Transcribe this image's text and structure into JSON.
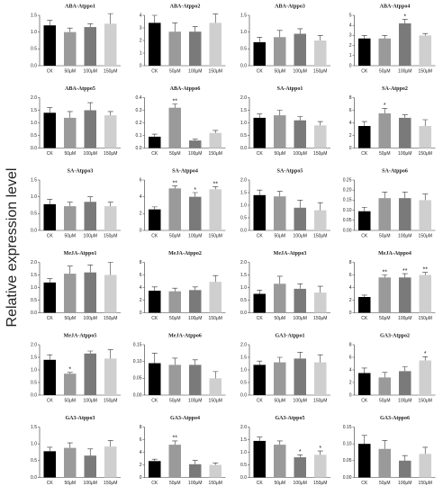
{
  "y_label": "Relative expression level",
  "chart_data": [
    {
      "type": "bar",
      "title": "ABA-Atppo1",
      "categories": [
        "CK",
        "50μM",
        "100μM",
        "150μM"
      ],
      "values": [
        1.2,
        1.0,
        1.15,
        1.25
      ],
      "errors": [
        0.15,
        0.12,
        0.1,
        0.3
      ],
      "significance": [
        null,
        null,
        null,
        null
      ],
      "colors": [
        "#000000",
        "#9a9a9a",
        "#7a7a7a",
        "#cfcfcf"
      ],
      "ylim": [
        0,
        1.5
      ],
      "yticks": [
        {
          "value": 0,
          "label": "0.0"
        },
        0.5,
        {
          "value": 1,
          "label": "1.0"
        },
        1.5
      ]
    },
    {
      "type": "bar",
      "title": "ABA-Atppo2",
      "categories": [
        "CK",
        "50μM",
        "100μM",
        "150μM"
      ],
      "values": [
        3.4,
        2.7,
        2.7,
        3.4
      ],
      "errors": [
        0.6,
        0.7,
        0.4,
        0.7
      ],
      "significance": [
        null,
        null,
        null,
        null
      ],
      "colors": [
        "#000000",
        "#9a9a9a",
        "#7a7a7a",
        "#cfcfcf"
      ],
      "ylim": [
        0,
        4
      ],
      "yticks": [
        0,
        1,
        2,
        3,
        4
      ]
    },
    {
      "type": "bar",
      "title": "ABA-Atppo3",
      "categories": [
        "CK",
        "50μM",
        "100μM",
        "150μM"
      ],
      "values": [
        0.7,
        0.85,
        0.95,
        0.75
      ],
      "errors": [
        0.15,
        0.2,
        0.15,
        0.15
      ],
      "significance": [
        null,
        null,
        null,
        null
      ],
      "colors": [
        "#000000",
        "#9a9a9a",
        "#7a7a7a",
        "#cfcfcf"
      ],
      "ylim": [
        0,
        1.5
      ],
      "yticks": [
        {
          "value": 0,
          "label": "0.0"
        },
        0.5,
        {
          "value": 1,
          "label": "1.0"
        },
        1.5
      ]
    },
    {
      "type": "bar",
      "title": "ABA-Atppo4",
      "categories": [
        "CK",
        "50μM",
        "100μM",
        "150μM"
      ],
      "values": [
        2.7,
        2.7,
        4.2,
        3.0
      ],
      "errors": [
        0.3,
        0.3,
        0.4,
        0.2
      ],
      "significance": [
        null,
        null,
        "*",
        null
      ],
      "colors": [
        "#000000",
        "#9a9a9a",
        "#7a7a7a",
        "#cfcfcf"
      ],
      "ylim": [
        0,
        5
      ],
      "yticks": [
        0,
        1,
        2,
        3,
        4,
        5
      ]
    },
    {
      "type": "bar",
      "title": "ABA-Atppo5",
      "categories": [
        "CK",
        "50μM",
        "100μM",
        "150μM"
      ],
      "values": [
        1.4,
        1.2,
        1.5,
        1.3
      ],
      "errors": [
        0.2,
        0.25,
        0.3,
        0.15
      ],
      "significance": [
        null,
        null,
        null,
        null
      ],
      "colors": [
        "#000000",
        "#9a9a9a",
        "#7a7a7a",
        "#cfcfcf"
      ],
      "ylim": [
        0,
        2
      ],
      "yticks": [
        {
          "value": 0,
          "label": "0.0"
        },
        0.5,
        {
          "value": 1,
          "label": "1.0"
        },
        1.5,
        {
          "value": 2,
          "label": "2.0"
        }
      ]
    },
    {
      "type": "bar",
      "title": "ABA-Atppo6",
      "categories": [
        "CK",
        "50μM",
        "100μM",
        "150μM"
      ],
      "values": [
        0.09,
        0.32,
        0.06,
        0.12
      ],
      "errors": [
        0.02,
        0.03,
        0.01,
        0.02
      ],
      "significance": [
        null,
        "**",
        null,
        null
      ],
      "colors": [
        "#000000",
        "#9a9a9a",
        "#7a7a7a",
        "#cfcfcf"
      ],
      "ylim": [
        0,
        0.4
      ],
      "yticks": [
        {
          "value": 0,
          "label": "0.0"
        },
        0.1,
        0.2,
        0.3,
        0.4
      ]
    },
    {
      "type": "bar",
      "title": "SA-Atppo1",
      "categories": [
        "CK",
        "50μM",
        "100μM",
        "150μM"
      ],
      "values": [
        1.2,
        1.3,
        1.1,
        0.9
      ],
      "errors": [
        0.15,
        0.2,
        0.15,
        0.15
      ],
      "significance": [
        null,
        null,
        null,
        null
      ],
      "colors": [
        "#000000",
        "#9a9a9a",
        "#7a7a7a",
        "#cfcfcf"
      ],
      "ylim": [
        0,
        2
      ],
      "yticks": [
        {
          "value": 0,
          "label": "0.0"
        },
        0.5,
        {
          "value": 1,
          "label": "1.0"
        },
        1.5,
        {
          "value": 2,
          "label": "2.0"
        }
      ]
    },
    {
      "type": "bar",
      "title": "SA-Atppo2",
      "categories": [
        "CK",
        "50μM",
        "100μM",
        "150μM"
      ],
      "values": [
        3.5,
        5.5,
        4.8,
        3.5
      ],
      "errors": [
        0.7,
        0.8,
        0.5,
        1.0
      ],
      "significance": [
        null,
        "*",
        null,
        null
      ],
      "colors": [
        "#000000",
        "#9a9a9a",
        "#7a7a7a",
        "#cfcfcf"
      ],
      "ylim": [
        0,
        8
      ],
      "yticks": [
        0,
        2,
        4,
        6,
        8
      ]
    },
    {
      "type": "bar",
      "title": "SA-Atppo3",
      "categories": [
        "CK",
        "50μM",
        "100μM",
        "150μM"
      ],
      "values": [
        0.78,
        0.72,
        0.85,
        0.72
      ],
      "errors": [
        0.15,
        0.12,
        0.15,
        0.12
      ],
      "significance": [
        null,
        null,
        null,
        null
      ],
      "colors": [
        "#000000",
        "#9a9a9a",
        "#7a7a7a",
        "#cfcfcf"
      ],
      "ylim": [
        0,
        1.5
      ],
      "yticks": [
        {
          "value": 0,
          "label": "0.0"
        },
        0.5,
        {
          "value": 1,
          "label": "1.0"
        },
        1.5
      ]
    },
    {
      "type": "bar",
      "title": "SA-Atppo4",
      "categories": [
        "CK",
        "50μM",
        "100μM",
        "150μM"
      ],
      "values": [
        2.5,
        5.0,
        4.0,
        4.9
      ],
      "errors": [
        0.3,
        0.3,
        0.5,
        0.3
      ],
      "significance": [
        null,
        "**",
        "*",
        "**"
      ],
      "colors": [
        "#000000",
        "#9a9a9a",
        "#7a7a7a",
        "#cfcfcf"
      ],
      "ylim": [
        0,
        6
      ],
      "yticks": [
        0,
        2,
        4,
        6
      ]
    },
    {
      "type": "bar",
      "title": "SA-Atppo5",
      "categories": [
        "CK",
        "50μM",
        "100μM",
        "150μM"
      ],
      "values": [
        1.4,
        1.35,
        0.9,
        0.8
      ],
      "errors": [
        0.2,
        0.2,
        0.3,
        0.3
      ],
      "significance": [
        null,
        null,
        null,
        null
      ],
      "colors": [
        "#000000",
        "#9a9a9a",
        "#7a7a7a",
        "#cfcfcf"
      ],
      "ylim": [
        0,
        2
      ],
      "yticks": [
        {
          "value": 0,
          "label": "0.0"
        },
        0.5,
        {
          "value": 1,
          "label": "1.0"
        },
        1.5,
        {
          "value": 2,
          "label": "2.0"
        }
      ]
    },
    {
      "type": "bar",
      "title": "SA-Atppo6",
      "categories": [
        "CK",
        "50μM",
        "100μM",
        "150μM"
      ],
      "values": [
        0.095,
        0.16,
        0.16,
        0.15
      ],
      "errors": [
        0.02,
        0.03,
        0.03,
        0.03
      ],
      "significance": [
        null,
        null,
        null,
        null
      ],
      "colors": [
        "#000000",
        "#9a9a9a",
        "#7a7a7a",
        "#cfcfcf"
      ],
      "ylim": [
        0,
        0.25
      ],
      "yticks": [
        {
          "value": 0,
          "label": "0.00"
        },
        0.05,
        {
          "value": 0.1,
          "label": "0.10"
        },
        0.15,
        {
          "value": 0.2,
          "label": "0.20"
        },
        0.25
      ]
    },
    {
      "type": "bar",
      "title": "MeJA-Atppo1",
      "categories": [
        "CK",
        "50μM",
        "100μM",
        "150μM"
      ],
      "values": [
        1.2,
        1.55,
        1.6,
        1.5
      ],
      "errors": [
        0.15,
        0.3,
        0.3,
        0.5
      ],
      "significance": [
        null,
        null,
        null,
        null
      ],
      "colors": [
        "#000000",
        "#9a9a9a",
        "#7a7a7a",
        "#cfcfcf"
      ],
      "ylim": [
        0,
        2
      ],
      "yticks": [
        {
          "value": 0,
          "label": "0.0"
        },
        0.5,
        {
          "value": 1,
          "label": "1.0"
        },
        1.5,
        {
          "value": 2,
          "label": "2.0"
        }
      ]
    },
    {
      "type": "bar",
      "title": "MeJA-Atppo2",
      "categories": [
        "CK",
        "50μM",
        "100μM",
        "150μM"
      ],
      "values": [
        3.5,
        3.4,
        3.6,
        4.9
      ],
      "errors": [
        0.6,
        0.5,
        0.5,
        1.0
      ],
      "significance": [
        null,
        null,
        null,
        null
      ],
      "colors": [
        "#000000",
        "#9a9a9a",
        "#7a7a7a",
        "#cfcfcf"
      ],
      "ylim": [
        0,
        8
      ],
      "yticks": [
        0,
        2,
        4,
        6,
        8
      ]
    },
    {
      "type": "bar",
      "title": "MeJA-Atppo3",
      "categories": [
        "CK",
        "50μM",
        "100μM",
        "150μM"
      ],
      "values": [
        0.75,
        1.15,
        0.95,
        0.8
      ],
      "errors": [
        0.15,
        0.3,
        0.2,
        0.25
      ],
      "significance": [
        null,
        null,
        null,
        null
      ],
      "colors": [
        "#000000",
        "#9a9a9a",
        "#7a7a7a",
        "#cfcfcf"
      ],
      "ylim": [
        0,
        2
      ],
      "yticks": [
        {
          "value": 0,
          "label": "0.0"
        },
        0.5,
        {
          "value": 1,
          "label": "1.0"
        },
        1.5,
        {
          "value": 2,
          "label": "2.0"
        }
      ]
    },
    {
      "type": "bar",
      "title": "MeJA-Atppo4",
      "categories": [
        "CK",
        "50μM",
        "100μM",
        "150μM"
      ],
      "values": [
        2.5,
        5.6,
        5.6,
        6.0
      ],
      "errors": [
        0.3,
        0.4,
        0.6,
        0.4
      ],
      "significance": [
        null,
        "**",
        "**",
        "**"
      ],
      "colors": [
        "#000000",
        "#9a9a9a",
        "#7a7a7a",
        "#cfcfcf"
      ],
      "ylim": [
        0,
        8
      ],
      "yticks": [
        0,
        2,
        4,
        6,
        8
      ]
    },
    {
      "type": "bar",
      "title": "MeJA-Atppo5",
      "categories": [
        "CK",
        "50μM",
        "100μM",
        "150μM"
      ],
      "values": [
        1.4,
        0.85,
        1.65,
        1.45
      ],
      "errors": [
        0.2,
        0.05,
        0.1,
        0.35
      ],
      "significance": [
        null,
        "*",
        null,
        null
      ],
      "colors": [
        "#000000",
        "#9a9a9a",
        "#7a7a7a",
        "#cfcfcf"
      ],
      "ylim": [
        0,
        2
      ],
      "yticks": [
        {
          "value": 0,
          "label": "0.0"
        },
        0.5,
        {
          "value": 1,
          "label": "1.0"
        },
        1.5,
        {
          "value": 2,
          "label": "2.0"
        }
      ]
    },
    {
      "type": "bar",
      "title": "MeJA-Atppo6",
      "categories": [
        "CK",
        "50μM",
        "100μM",
        "150μM"
      ],
      "values": [
        0.095,
        0.09,
        0.09,
        0.05
      ],
      "errors": [
        0.03,
        0.02,
        0.015,
        0.02
      ],
      "significance": [
        null,
        null,
        null,
        null
      ],
      "colors": [
        "#000000",
        "#9a9a9a",
        "#7a7a7a",
        "#cfcfcf"
      ],
      "ylim": [
        0,
        0.15
      ],
      "yticks": [
        {
          "value": 0,
          "label": "0.00"
        },
        0.05,
        {
          "value": 0.1,
          "label": "0.10"
        },
        0.15
      ]
    },
    {
      "type": "bar",
      "title": "GA3-Atppo1",
      "categories": [
        "CK",
        "50μM",
        "100μM",
        "150μM"
      ],
      "values": [
        1.2,
        1.3,
        1.45,
        1.3
      ],
      "errors": [
        0.15,
        0.2,
        0.25,
        0.3
      ],
      "significance": [
        null,
        null,
        null,
        null
      ],
      "colors": [
        "#000000",
        "#9a9a9a",
        "#7a7a7a",
        "#cfcfcf"
      ],
      "ylim": [
        0,
        2
      ],
      "yticks": [
        {
          "value": 0,
          "label": "0.0"
        },
        0.5,
        {
          "value": 1,
          "label": "1.0"
        },
        1.5,
        {
          "value": 2,
          "label": "2.0"
        }
      ]
    },
    {
      "type": "bar",
      "title": "GA3-Atppo2",
      "categories": [
        "CK",
        "50μM",
        "100μM",
        "150μM"
      ],
      "values": [
        3.5,
        2.8,
        3.8,
        5.5
      ],
      "errors": [
        0.8,
        0.8,
        0.7,
        0.6
      ],
      "significance": [
        null,
        null,
        null,
        "*"
      ],
      "colors": [
        "#000000",
        "#9a9a9a",
        "#7a7a7a",
        "#cfcfcf"
      ],
      "ylim": [
        0,
        8
      ],
      "yticks": [
        0,
        2,
        4,
        6,
        8
      ]
    },
    {
      "type": "bar",
      "title": "GA3-Atppo3",
      "categories": [
        "CK",
        "50μM",
        "100μM",
        "150μM"
      ],
      "values": [
        0.78,
        0.88,
        0.65,
        0.92
      ],
      "errors": [
        0.12,
        0.15,
        0.2,
        0.18
      ],
      "significance": [
        null,
        null,
        null,
        null
      ],
      "colors": [
        "#000000",
        "#9a9a9a",
        "#7a7a7a",
        "#cfcfcf"
      ],
      "ylim": [
        0,
        1.5
      ],
      "yticks": [
        {
          "value": 0,
          "label": "0.0"
        },
        0.5,
        {
          "value": 1,
          "label": "1.0"
        },
        1.5
      ]
    },
    {
      "type": "bar",
      "title": "GA3-Atppo4",
      "categories": [
        "CK",
        "50μM",
        "100μM",
        "150μM"
      ],
      "values": [
        2.6,
        5.2,
        2.1,
        2.0
      ],
      "errors": [
        0.3,
        0.6,
        0.6,
        0.3
      ],
      "significance": [
        null,
        "**",
        null,
        null
      ],
      "colors": [
        "#000000",
        "#9a9a9a",
        "#7a7a7a",
        "#cfcfcf"
      ],
      "ylim": [
        0,
        8
      ],
      "yticks": [
        0,
        2,
        4,
        6,
        8
      ]
    },
    {
      "type": "bar",
      "title": "GA3-Atppo5",
      "categories": [
        "CK",
        "50μM",
        "100μM",
        "150μM"
      ],
      "values": [
        1.45,
        1.3,
        0.8,
        0.9
      ],
      "errors": [
        0.15,
        0.15,
        0.1,
        0.15
      ],
      "significance": [
        null,
        null,
        "*",
        "*"
      ],
      "colors": [
        "#000000",
        "#9a9a9a",
        "#7a7a7a",
        "#cfcfcf"
      ],
      "ylim": [
        0,
        2
      ],
      "yticks": [
        {
          "value": 0,
          "label": "0.0"
        },
        0.5,
        {
          "value": 1,
          "label": "1.0"
        },
        1.5,
        {
          "value": 2,
          "label": "2.0"
        }
      ]
    },
    {
      "type": "bar",
      "title": "GA3-Atppo6",
      "categories": [
        "CK",
        "50μM",
        "100μM",
        "150μM"
      ],
      "values": [
        0.1,
        0.085,
        0.05,
        0.07
      ],
      "errors": [
        0.025,
        0.025,
        0.015,
        0.02
      ],
      "significance": [
        null,
        null,
        null,
        null
      ],
      "colors": [
        "#000000",
        "#9a9a9a",
        "#7a7a7a",
        "#cfcfcf"
      ],
      "ylim": [
        0,
        0.15
      ],
      "yticks": [
        {
          "value": 0,
          "label": "0.00"
        },
        0.05,
        {
          "value": 0.1,
          "label": "0.10"
        },
        0.15
      ]
    }
  ]
}
